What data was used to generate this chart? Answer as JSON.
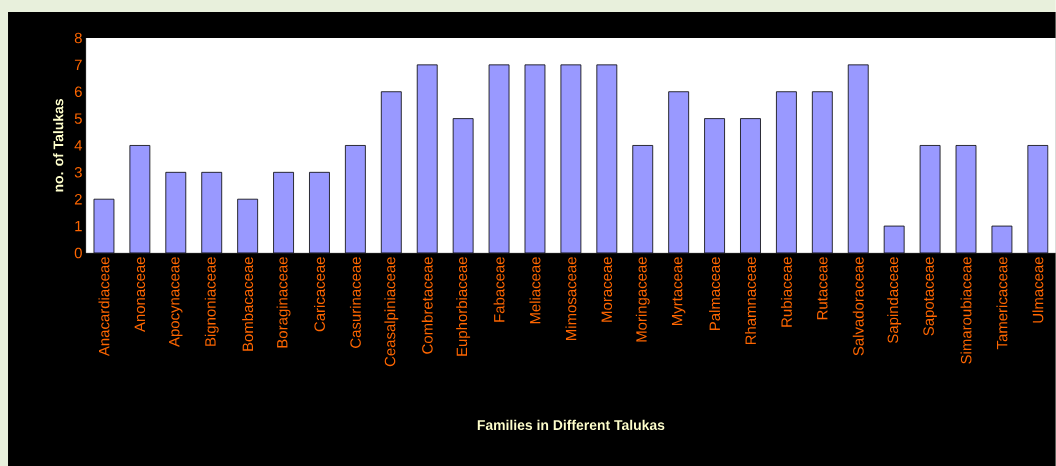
{
  "chart_data": {
    "type": "bar",
    "xlabel": "Families in Different Talukas",
    "ylabel": "no. of Talukas",
    "categories": [
      "Anacardiaceae",
      "Anonaceae",
      "Apocynaceae",
      "Bignoniaceae",
      "Bombacaceae",
      "Boraginaceae",
      "Caricaceae",
      "Casurinaceae",
      "Ceasalpiniaceae",
      "Combretaceae",
      "Euphorbiaceae",
      "Fabaceae",
      "Meliaceae",
      "Mimosaceae",
      "Moraceae",
      "Moringaceae",
      "Myrtaceae",
      "Palmaceae",
      "Rhamnaceae",
      "Rubiaceae",
      "Rutaceae",
      "Salvadoraceae",
      "Sapindaceae",
      "Sapotaceae",
      "Simaroubiaceae",
      "Tamericaceae",
      "Ulmaceae"
    ],
    "values": [
      2,
      4,
      3,
      3,
      2,
      3,
      3,
      4,
      6,
      7,
      5,
      7,
      7,
      7,
      7,
      4,
      6,
      5,
      5,
      6,
      6,
      7,
      1,
      4,
      4,
      1,
      4
    ],
    "color": "#9999ff",
    "ylim": [
      0,
      8
    ],
    "yticks": [
      0,
      1,
      2,
      3,
      4,
      5,
      6,
      7,
      8
    ]
  }
}
